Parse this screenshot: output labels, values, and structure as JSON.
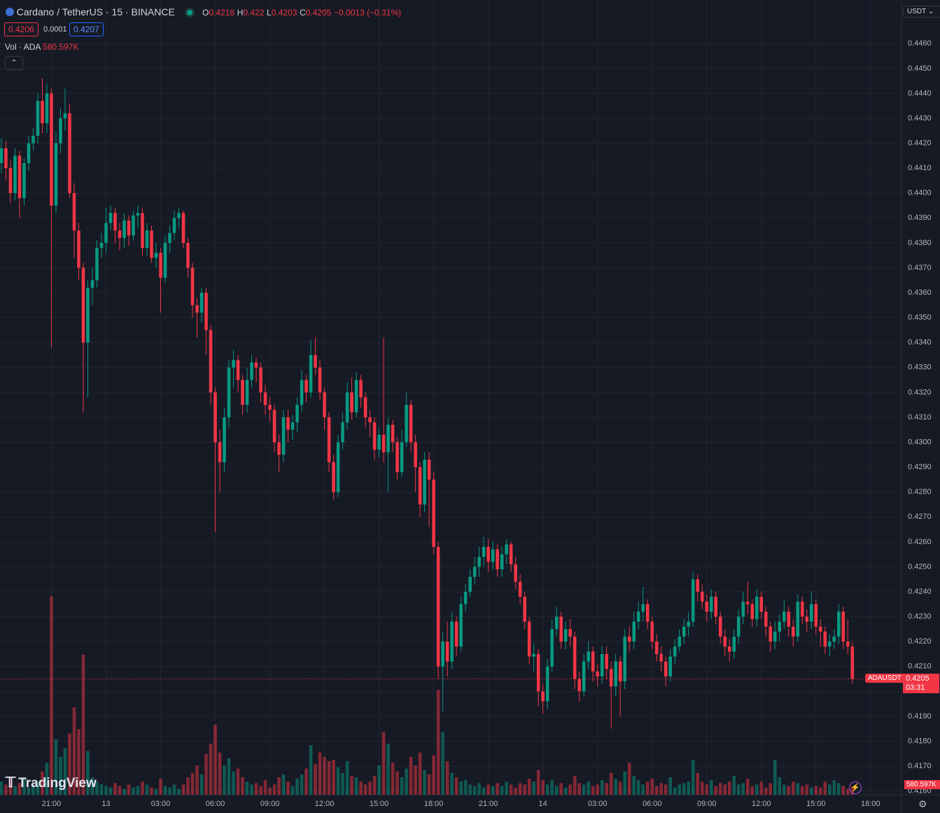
{
  "header": {
    "symbol": "Cardano / TetherUS · 15 · BINANCE",
    "ohlc_letters": [
      "O",
      "H",
      "L",
      "C"
    ],
    "change": "−0.0013 (−0.31%)",
    "bid": 0.4206,
    "spread": 0.0001,
    "ask": 0.4207,
    "volume_title": "Vol · ADA",
    "volume_label": "580.597K",
    "currency": "USDT",
    "watermark": "TradingView",
    "price_tag": "ADAUSDT",
    "countdown": "03:31"
  },
  "chart_data": {
    "type": "candlestick",
    "up_color": "#089981",
    "down_color": "#f23645",
    "grid": true,
    "ylim": [
      0.41585,
      0.44775
    ],
    "yticks": [
      {
        "value": 0.446,
        "label": "0.4460"
      },
      {
        "value": 0.445,
        "label": "0.4450"
      },
      {
        "value": 0.444,
        "label": "0.4440"
      },
      {
        "value": 0.443,
        "label": "0.4430"
      },
      {
        "value": 0.442,
        "label": "0.4420"
      },
      {
        "value": 0.441,
        "label": "0.4410"
      },
      {
        "value": 0.44,
        "label": "0.4400"
      },
      {
        "value": 0.439,
        "label": "0.4390"
      },
      {
        "value": 0.438,
        "label": "0.4380"
      },
      {
        "value": 0.437,
        "label": "0.4370"
      },
      {
        "value": 0.436,
        "label": "0.4360"
      },
      {
        "value": 0.435,
        "label": "0.4350"
      },
      {
        "value": 0.434,
        "label": "0.4340"
      },
      {
        "value": 0.433,
        "label": "0.4330"
      },
      {
        "value": 0.432,
        "label": "0.4320"
      },
      {
        "value": 0.431,
        "label": "0.4310"
      },
      {
        "value": 0.43,
        "label": "0.4300"
      },
      {
        "value": 0.429,
        "label": "0.4290"
      },
      {
        "value": 0.428,
        "label": "0.4280"
      },
      {
        "value": 0.427,
        "label": "0.4270"
      },
      {
        "value": 0.426,
        "label": "0.4260"
      },
      {
        "value": 0.425,
        "label": "0.4250"
      },
      {
        "value": 0.424,
        "label": "0.4240"
      },
      {
        "value": 0.423,
        "label": "0.4230"
      },
      {
        "value": 0.422,
        "label": "0.4220"
      },
      {
        "value": 0.421,
        "label": "0.4210"
      },
      {
        "value": 0.42,
        "label": "0.4200"
      },
      {
        "value": 0.419,
        "label": "0.4190"
      },
      {
        "value": 0.418,
        "label": "0.4180"
      },
      {
        "value": 0.417,
        "label": "0.4170"
      },
      {
        "value": 0.416,
        "label": "0.4160"
      }
    ],
    "xlim": [
      -0.3,
      197.8
    ],
    "xticks": [
      {
        "value": 11,
        "label": "21:00"
      },
      {
        "value": 23,
        "label": "13"
      },
      {
        "value": 35,
        "label": "03:00"
      },
      {
        "value": 47,
        "label": "06:00"
      },
      {
        "value": 59,
        "label": "09:00"
      },
      {
        "value": 71,
        "label": "12:00"
      },
      {
        "value": 83,
        "label": "15:00"
      },
      {
        "value": 95,
        "label": "18:00"
      },
      {
        "value": 107,
        "label": "21:00"
      },
      {
        "value": 119,
        "label": "14"
      },
      {
        "value": 131,
        "label": "03:00"
      },
      {
        "value": 143,
        "label": "06:00"
      },
      {
        "value": 155,
        "label": "09:00"
      },
      {
        "value": 167,
        "label": "12:00"
      },
      {
        "value": 179,
        "label": "15:00"
      },
      {
        "value": 191,
        "label": "18:00"
      }
    ],
    "volume_lim": [
      0,
      14400
    ],
    "open": [
      0.4412,
      0.4418,
      0.441,
      0.44,
      0.4415,
      0.4398,
      0.4412,
      0.442,
      0.4423,
      0.4437,
      0.4428,
      0.444,
      0.4395,
      0.442,
      0.443,
      0.4432,
      0.44,
      0.4385,
      0.437,
      0.434,
      0.4362,
      0.4365,
      0.4378,
      0.438,
      0.4388,
      0.4392,
      0.4385,
      0.4382,
      0.4389,
      0.4383,
      0.4391,
      0.4392,
      0.4378,
      0.4385,
      0.4374,
      0.4376,
      0.4366,
      0.438,
      0.4384,
      0.439,
      0.4392,
      0.438,
      0.437,
      0.4355,
      0.4352,
      0.436,
      0.4345,
      0.432,
      0.43,
      0.4292,
      0.431,
      0.433,
      0.4333,
      0.4325,
      0.4315,
      0.4325,
      0.4332,
      0.433,
      0.432,
      0.4315,
      0.4313,
      0.43,
      0.4295,
      0.431,
      0.4305,
      0.4308,
      0.4315,
      0.4325,
      0.432,
      0.4335,
      0.433,
      0.432,
      0.431,
      0.4292,
      0.428,
      0.43,
      0.4308,
      0.432,
      0.4312,
      0.4325,
      0.4318,
      0.431,
      0.4308,
      0.4297,
      0.4303,
      0.4296,
      0.4307,
      0.43,
      0.4288,
      0.43,
      0.4315,
      0.43,
      0.429,
      0.4275,
      0.4293,
      0.4285,
      0.4258,
      0.421,
      0.422,
      0.4212,
      0.4228,
      0.4218,
      0.4235,
      0.424,
      0.4246,
      0.425,
      0.4254,
      0.4258,
      0.4252,
      0.4257,
      0.4249,
      0.4255,
      0.4259,
      0.4251,
      0.4244,
      0.4238,
      0.4228,
      0.4214,
      0.4215,
      0.42,
      0.4196,
      0.421,
      0.4225,
      0.423,
      0.422,
      0.4225,
      0.4222,
      0.4205,
      0.42,
      0.4212,
      0.4216,
      0.4208,
      0.4206,
      0.4215,
      0.4209,
      0.4202,
      0.4212,
      0.4204,
      0.4222,
      0.422,
      0.4228,
      0.4232,
      0.4235,
      0.4228,
      0.422,
      0.4215,
      0.4212,
      0.4206,
      0.4214,
      0.4218,
      0.4222,
      0.4226,
      0.4228,
      0.4245,
      0.424,
      0.4236,
      0.4232,
      0.4238,
      0.423,
      0.4222,
      0.4218,
      0.4216,
      0.4222,
      0.423,
      0.4236,
      0.4235,
      0.4229,
      0.4238,
      0.4232,
      0.4226,
      0.422,
      0.4224,
      0.4228,
      0.4232,
      0.4226,
      0.4222,
      0.4236,
      0.423,
      0.4228,
      0.4235,
      0.4226,
      0.4224,
      0.4218,
      0.422,
      0.4222,
      0.4232,
      0.422,
      0.4218
    ],
    "high": [
      0.4422,
      0.4421,
      0.4413,
      0.4418,
      0.4417,
      0.4414,
      0.4423,
      0.4426,
      0.444,
      0.4446,
      0.4444,
      0.4442,
      0.4425,
      0.4434,
      0.4442,
      0.4436,
      0.4404,
      0.4388,
      0.4372,
      0.4365,
      0.437,
      0.4381,
      0.4384,
      0.4394,
      0.4395,
      0.4394,
      0.4388,
      0.4392,
      0.4391,
      0.4393,
      0.4395,
      0.4394,
      0.4388,
      0.4387,
      0.438,
      0.4378,
      0.4383,
      0.4387,
      0.4393,
      0.4394,
      0.4393,
      0.4382,
      0.4372,
      0.4358,
      0.4362,
      0.4362,
      0.4347,
      0.4322,
      0.4305,
      0.4314,
      0.4333,
      0.4337,
      0.4335,
      0.4327,
      0.433,
      0.4335,
      0.4334,
      0.4332,
      0.4323,
      0.4318,
      0.4315,
      0.4303,
      0.4313,
      0.4313,
      0.4311,
      0.4318,
      0.4329,
      0.4327,
      0.4341,
      0.4342,
      0.4333,
      0.4322,
      0.4312,
      0.4295,
      0.4303,
      0.4312,
      0.4324,
      0.4326,
      0.4328,
      0.4327,
      0.432,
      0.4313,
      0.431,
      0.4306,
      0.4342,
      0.431,
      0.4309,
      0.4302,
      0.4305,
      0.432,
      0.4317,
      0.4303,
      0.4292,
      0.4296,
      0.4296,
      0.4288,
      0.426,
      0.4224,
      0.4228,
      0.4232,
      0.423,
      0.4238,
      0.4243,
      0.4249,
      0.4254,
      0.4258,
      0.4262,
      0.4261,
      0.426,
      0.4259,
      0.4258,
      0.4261,
      0.426,
      0.4254,
      0.4247,
      0.424,
      0.423,
      0.4219,
      0.4217,
      0.4203,
      0.4213,
      0.4229,
      0.4234,
      0.4232,
      0.4228,
      0.4229,
      0.4224,
      0.4208,
      0.4215,
      0.422,
      0.4218,
      0.4211,
      0.4218,
      0.4218,
      0.4212,
      0.4215,
      0.4214,
      0.4225,
      0.4226,
      0.4232,
      0.4236,
      0.4242,
      0.4237,
      0.423,
      0.4223,
      0.4218,
      0.4214,
      0.4217,
      0.4221,
      0.4225,
      0.4229,
      0.4232,
      0.4248,
      0.4247,
      0.4243,
      0.4239,
      0.4241,
      0.424,
      0.4232,
      0.4225,
      0.4221,
      0.4225,
      0.4233,
      0.424,
      0.4244,
      0.4237,
      0.4241,
      0.424,
      0.4234,
      0.4228,
      0.4228,
      0.4231,
      0.4237,
      0.4234,
      0.4229,
      0.4239,
      0.4238,
      0.4233,
      0.424,
      0.4237,
      0.4229,
      0.4226,
      0.4223,
      0.4225,
      0.4235,
      0.4234,
      0.4229,
      0.422
    ],
    "low": [
      0.4408,
      0.4405,
      0.4396,
      0.4397,
      0.439,
      0.4395,
      0.4409,
      0.4417,
      0.442,
      0.4424,
      0.4424,
      0.4338,
      0.4392,
      0.4416,
      0.4425,
      0.4398,
      0.4374,
      0.4365,
      0.4312,
      0.4318,
      0.4355,
      0.4362,
      0.4374,
      0.4376,
      0.4385,
      0.438,
      0.4377,
      0.4378,
      0.4379,
      0.4381,
      0.4386,
      0.4375,
      0.4375,
      0.4372,
      0.437,
      0.4352,
      0.4364,
      0.4376,
      0.4381,
      0.4386,
      0.4378,
      0.4366,
      0.435,
      0.4342,
      0.4348,
      0.4335,
      0.4315,
      0.4264,
      0.428,
      0.4288,
      0.4306,
      0.4322,
      0.432,
      0.4311,
      0.4312,
      0.4322,
      0.4324,
      0.4316,
      0.4311,
      0.4308,
      0.4296,
      0.4288,
      0.4292,
      0.43,
      0.4301,
      0.4304,
      0.4312,
      0.4316,
      0.4318,
      0.4327,
      0.4317,
      0.4305,
      0.4288,
      0.4277,
      0.4278,
      0.4297,
      0.4305,
      0.4309,
      0.431,
      0.4314,
      0.4306,
      0.4302,
      0.4293,
      0.4294,
      0.4292,
      0.428,
      0.4296,
      0.4285,
      0.4286,
      0.4298,
      0.4296,
      0.428,
      0.427,
      0.4272,
      0.4266,
      0.4255,
      0.4205,
      0.4192,
      0.4206,
      0.4209,
      0.4214,
      0.4216,
      0.4232,
      0.4238,
      0.4243,
      0.4246,
      0.425,
      0.4248,
      0.4249,
      0.4246,
      0.4246,
      0.4251,
      0.4248,
      0.4241,
      0.4235,
      0.4225,
      0.4211,
      0.4208,
      0.4194,
      0.4191,
      0.4193,
      0.4208,
      0.4222,
      0.4217,
      0.4217,
      0.4218,
      0.4201,
      0.4196,
      0.4198,
      0.4209,
      0.4204,
      0.4202,
      0.4203,
      0.4205,
      0.4185,
      0.4198,
      0.419,
      0.4201,
      0.4216,
      0.4217,
      0.4225,
      0.4228,
      0.4225,
      0.4217,
      0.4212,
      0.4208,
      0.4202,
      0.4204,
      0.4211,
      0.4216,
      0.4219,
      0.4222,
      0.4226,
      0.4236,
      0.4233,
      0.4228,
      0.4229,
      0.4227,
      0.4219,
      0.4214,
      0.4212,
      0.4213,
      0.4219,
      0.4227,
      0.4231,
      0.4226,
      0.4226,
      0.4229,
      0.4222,
      0.4216,
      0.4217,
      0.422,
      0.4225,
      0.4222,
      0.4218,
      0.422,
      0.4227,
      0.4224,
      0.4225,
      0.4223,
      0.4218,
      0.4215,
      0.4214,
      0.4217,
      0.4219,
      0.4217,
      0.4215,
      0.4203
    ],
    "close": [
      0.4418,
      0.441,
      0.44,
      0.4415,
      0.4398,
      0.4412,
      0.442,
      0.4423,
      0.4437,
      0.4428,
      0.444,
      0.4395,
      0.442,
      0.443,
      0.4432,
      0.44,
      0.4385,
      0.437,
      0.434,
      0.4362,
      0.4365,
      0.4378,
      0.438,
      0.4388,
      0.4392,
      0.4385,
      0.4382,
      0.4389,
      0.4383,
      0.4391,
      0.4392,
      0.4378,
      0.4385,
      0.4374,
      0.4376,
      0.4366,
      0.438,
      0.4384,
      0.439,
      0.4392,
      0.438,
      0.437,
      0.4355,
      0.4352,
      0.436,
      0.4345,
      0.432,
      0.43,
      0.4292,
      0.431,
      0.433,
      0.4333,
      0.4325,
      0.4315,
      0.4325,
      0.4332,
      0.433,
      0.432,
      0.4315,
      0.4313,
      0.43,
      0.4295,
      0.431,
      0.4305,
      0.4308,
      0.4315,
      0.4325,
      0.432,
      0.4335,
      0.433,
      0.432,
      0.431,
      0.4292,
      0.428,
      0.43,
      0.4308,
      0.432,
      0.4312,
      0.4325,
      0.4318,
      0.431,
      0.4308,
      0.4297,
      0.4303,
      0.4296,
      0.4307,
      0.43,
      0.4288,
      0.43,
      0.4315,
      0.43,
      0.429,
      0.4275,
      0.4293,
      0.4285,
      0.4258,
      0.421,
      0.422,
      0.4212,
      0.4228,
      0.4218,
      0.4235,
      0.424,
      0.4246,
      0.425,
      0.4254,
      0.4258,
      0.4252,
      0.4257,
      0.4249,
      0.4255,
      0.4259,
      0.4251,
      0.4244,
      0.4238,
      0.4228,
      0.4214,
      0.4215,
      0.42,
      0.4196,
      0.421,
      0.4225,
      0.423,
      0.422,
      0.4225,
      0.4222,
      0.4205,
      0.42,
      0.4212,
      0.4216,
      0.4208,
      0.4206,
      0.4215,
      0.4209,
      0.4202,
      0.4212,
      0.4204,
      0.4222,
      0.422,
      0.4228,
      0.4232,
      0.4235,
      0.4228,
      0.422,
      0.4215,
      0.4212,
      0.4206,
      0.4214,
      0.4218,
      0.4222,
      0.4226,
      0.4228,
      0.4245,
      0.424,
      0.4236,
      0.4232,
      0.4238,
      0.423,
      0.4222,
      0.4218,
      0.4216,
      0.4222,
      0.423,
      0.4236,
      0.4235,
      0.4229,
      0.4238,
      0.4232,
      0.4226,
      0.422,
      0.4224,
      0.4228,
      0.4232,
      0.4226,
      0.4222,
      0.4236,
      0.423,
      0.4228,
      0.4235,
      0.4226,
      0.4224,
      0.4218,
      0.422,
      0.4222,
      0.4232,
      0.422,
      0.4218,
      0.4205
    ],
    "volume": [
      900,
      700,
      1100,
      600,
      800,
      1200,
      500,
      700,
      900,
      1600,
      2200,
      13600,
      3800,
      2600,
      3200,
      4200,
      6000,
      4500,
      9600,
      3000,
      1200,
      900,
      700,
      600,
      500,
      800,
      600,
      400,
      700,
      500,
      600,
      900,
      700,
      500,
      400,
      1100,
      600,
      500,
      700,
      400,
      700,
      1200,
      1500,
      2000,
      1400,
      2800,
      3500,
      4800,
      2900,
      2000,
      2500,
      1600,
      1800,
      1200,
      900,
      700,
      800,
      600,
      1000,
      500,
      700,
      1200,
      1400,
      900,
      600,
      1100,
      1400,
      1800,
      3400,
      2100,
      2900,
      2600,
      2300,
      2400,
      1900,
      1500,
      2300,
      1300,
      1200,
      900,
      700,
      900,
      1300,
      2000,
      4300,
      3500,
      2200,
      1600,
      1200,
      1800,
      2600,
      2000,
      2900,
      1700,
      1400,
      2700,
      7200,
      4300,
      2300,
      1500,
      1200,
      900,
      1000,
      700,
      600,
      800,
      500,
      700,
      600,
      800,
      600,
      900,
      700,
      500,
      800,
      700,
      1100,
      900,
      1700,
      1000,
      700,
      1000,
      600,
      800,
      500,
      700,
      1300,
      800,
      700,
      900,
      600,
      700,
      1000,
      800,
      1500,
      1100,
      900,
      1600,
      2200,
      1300,
      1000,
      700,
      900,
      1100,
      600,
      800,
      700,
      1200,
      500,
      700,
      800,
      900,
      2400,
      1500,
      900,
      700,
      1000,
      600,
      800,
      700,
      900,
      1300,
      700,
      800,
      1100,
      600,
      700,
      900,
      500,
      800,
      2400,
      1200,
      700,
      600,
      900,
      800,
      600,
      700,
      500,
      600,
      500,
      900,
      700,
      1000,
      800,
      600,
      400,
      580.597
    ]
  }
}
